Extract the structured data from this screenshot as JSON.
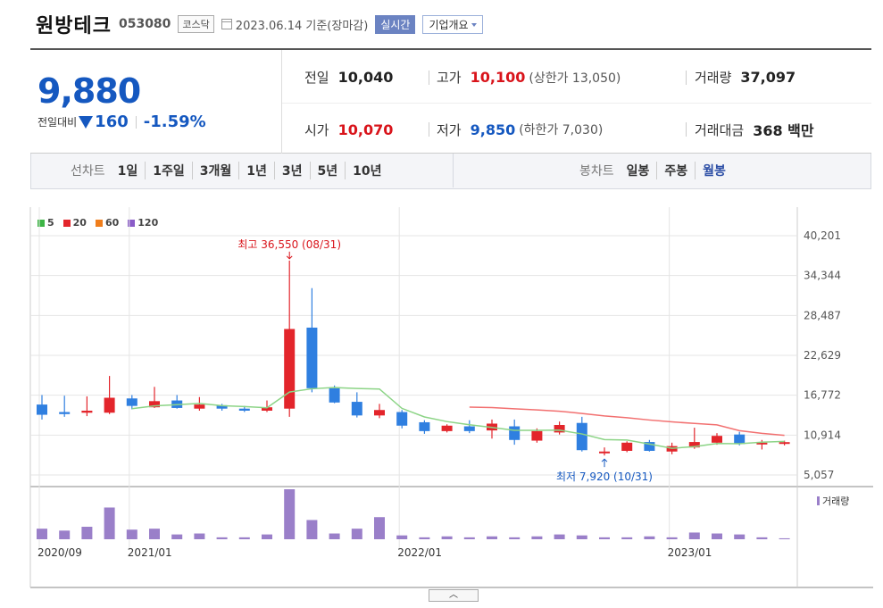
{
  "header": {
    "company_name": "원방테크",
    "stock_code": "053080",
    "market": "코스닥",
    "date_label": "2023.06.14 기준(장마감)",
    "realtime": "실시간",
    "overview": "기업개요"
  },
  "quote": {
    "price": "9,880",
    "change_label": "전일대비",
    "change_amount": "160",
    "change_pct": "-1.59%",
    "prev_close_label": "전일",
    "prev_close": "10,040",
    "high_label": "고가",
    "high": "10,100",
    "upper_limit": "(상한가 13,050)",
    "volume_label": "거래량",
    "volume": "37,097",
    "open_label": "시가",
    "open": "10,070",
    "low_label": "저가",
    "low": "9,850",
    "lower_limit": "(하한가 7,030)",
    "amount_label": "거래대금",
    "amount": "368 백만"
  },
  "periods": {
    "line_title": "선차트",
    "line_items": [
      "1일",
      "1주일",
      "3개월",
      "1년",
      "3년",
      "5년",
      "10년"
    ],
    "candle_title": "봉차트",
    "candle_items": [
      "일봉",
      "주봉",
      "월봉"
    ],
    "active_candle": "월봉"
  },
  "legend": [
    {
      "label": "5",
      "color": "#3db545"
    },
    {
      "label": "20",
      "color": "#e3252b"
    },
    {
      "label": "60",
      "color": "#f07e1b"
    },
    {
      "label": "120",
      "color": "#8a5cc8"
    }
  ],
  "colors": {
    "up": "#e3252b",
    "down": "#2f7fe0",
    "ma5": "#8cd486",
    "ma20": "#f27070",
    "volume": "#9a7fc9",
    "grid": "#e5e5e5"
  },
  "chart_data": {
    "type": "candlestick",
    "interval": "monthly",
    "y_ticks": [
      "40,201",
      "34,344",
      "28,487",
      "22,629",
      "16,772",
      "10,914",
      "5,057"
    ],
    "y_range": [
      5057,
      40201
    ],
    "x_labels": [
      {
        "label": "2020/09",
        "index": 0
      },
      {
        "label": "2021/01",
        "index": 4
      },
      {
        "label": "2022/01",
        "index": 16
      },
      {
        "label": "2023/01",
        "index": 28
      }
    ],
    "annotations": {
      "max_label": "최고 36,550 (08/31)",
      "max_value": 36550,
      "max_index": 11,
      "min_label": "최저 7,920 (10/31)",
      "min_value": 7920,
      "min_index": 25
    },
    "volume_legend": "거래량",
    "candles": [
      {
        "o": 15400,
        "h": 16800,
        "l": 13200,
        "c": 13900,
        "v": 11
      },
      {
        "o": 14300,
        "h": 16700,
        "l": 13600,
        "c": 14000,
        "v": 9
      },
      {
        "o": 14200,
        "h": 16600,
        "l": 13700,
        "c": 14500,
        "v": 13
      },
      {
        "o": 14200,
        "h": 19600,
        "l": 14000,
        "c": 16400,
        "v": 33
      },
      {
        "o": 16300,
        "h": 16800,
        "l": 14700,
        "c": 15200,
        "v": 10
      },
      {
        "o": 15000,
        "h": 18000,
        "l": 14900,
        "c": 15900,
        "v": 11
      },
      {
        "o": 16000,
        "h": 16800,
        "l": 14800,
        "c": 14900,
        "v": 5
      },
      {
        "o": 14800,
        "h": 16500,
        "l": 14500,
        "c": 15400,
        "v": 6
      },
      {
        "o": 15300,
        "h": 15500,
        "l": 14500,
        "c": 14800,
        "v": 2
      },
      {
        "o": 14800,
        "h": 15200,
        "l": 14300,
        "c": 14500,
        "v": 2
      },
      {
        "o": 14500,
        "h": 16000,
        "l": 14300,
        "c": 15000,
        "v": 5
      },
      {
        "o": 14800,
        "h": 36550,
        "l": 13600,
        "c": 26500,
        "v": 52
      },
      {
        "o": 26700,
        "h": 32500,
        "l": 17200,
        "c": 17800,
        "v": 20
      },
      {
        "o": 17800,
        "h": 18200,
        "l": 15600,
        "c": 15700,
        "v": 6
      },
      {
        "o": 15800,
        "h": 17200,
        "l": 13500,
        "c": 13800,
        "v": 11
      },
      {
        "o": 13800,
        "h": 15500,
        "l": 13400,
        "c": 14600,
        "v": 23
      },
      {
        "o": 14300,
        "h": 14600,
        "l": 11900,
        "c": 12300,
        "v": 4
      },
      {
        "o": 12800,
        "h": 13100,
        "l": 11100,
        "c": 11500,
        "v": 2
      },
      {
        "o": 11500,
        "h": 12500,
        "l": 11300,
        "c": 12300,
        "v": 3
      },
      {
        "o": 12200,
        "h": 13100,
        "l": 11200,
        "c": 11500,
        "v": 2
      },
      {
        "o": 11600,
        "h": 13200,
        "l": 10400,
        "c": 12600,
        "v": 3
      },
      {
        "o": 12200,
        "h": 13200,
        "l": 9500,
        "c": 10200,
        "v": 2
      },
      {
        "o": 10100,
        "h": 11900,
        "l": 9800,
        "c": 11500,
        "v": 3
      },
      {
        "o": 11300,
        "h": 12900,
        "l": 11000,
        "c": 12400,
        "v": 5
      },
      {
        "o": 12700,
        "h": 13600,
        "l": 8500,
        "c": 8700,
        "v": 4
      },
      {
        "o": 8300,
        "h": 9100,
        "l": 7920,
        "c": 8500,
        "v": 2
      },
      {
        "o": 8600,
        "h": 10000,
        "l": 8400,
        "c": 9800,
        "v": 2
      },
      {
        "o": 9900,
        "h": 10200,
        "l": 8500,
        "c": 8600,
        "v": 3
      },
      {
        "o": 8500,
        "h": 9800,
        "l": 8100,
        "c": 9300,
        "v": 2
      },
      {
        "o": 9100,
        "h": 12000,
        "l": 8900,
        "c": 9900,
        "v": 7
      },
      {
        "o": 9800,
        "h": 11200,
        "l": 9500,
        "c": 10800,
        "v": 6
      },
      {
        "o": 11000,
        "h": 11400,
        "l": 9400,
        "c": 9600,
        "v": 5
      },
      {
        "o": 9600,
        "h": 10200,
        "l": 8800,
        "c": 9800,
        "v": 2
      },
      {
        "o": 9800,
        "h": 10100,
        "l": 9400,
        "c": 9880,
        "v": 1
      }
    ]
  }
}
